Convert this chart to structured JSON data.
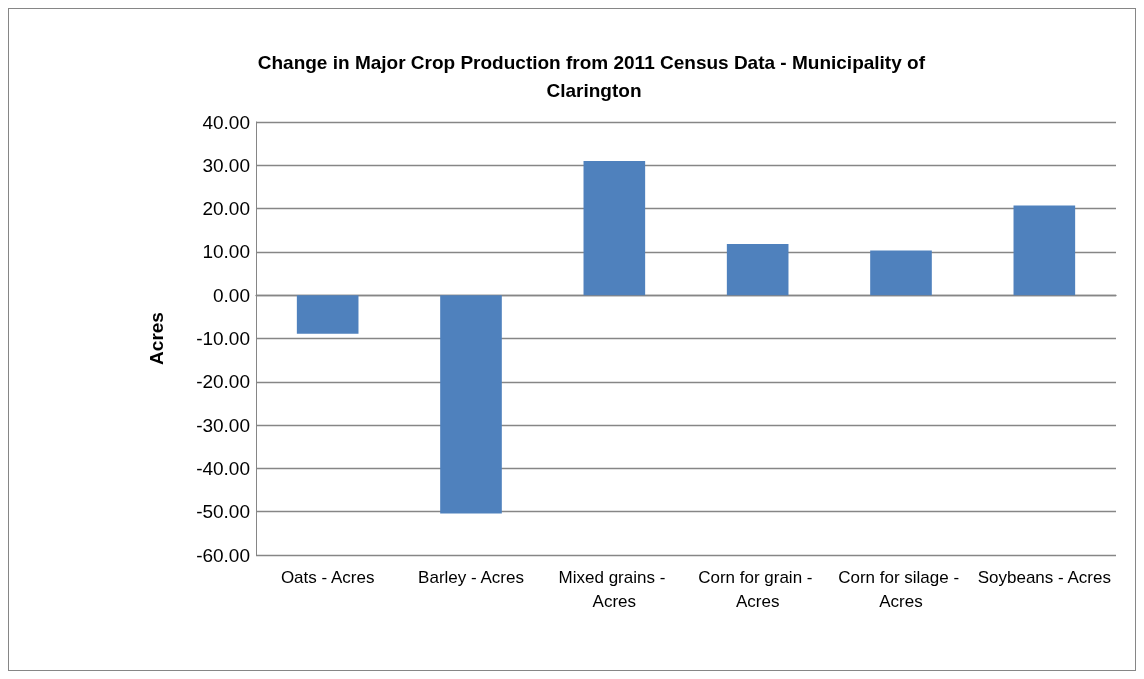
{
  "chart_data": {
    "type": "bar",
    "title": "Change in Major Crop Production from 2011 Census Data - Municipality of Clarington",
    "ylabel": "Acres",
    "categories": [
      "Oats - Acres",
      "Barley - Acres",
      "Mixed grains - Acres",
      "Corn for grain - Acres",
      "Corn for silage - Acres",
      "Soybeans - Acres"
    ],
    "values": [
      -8.9,
      -50.4,
      31.0,
      11.8,
      10.3,
      20.7
    ],
    "color": "#4f81bd",
    "ylim": [
      -60,
      40
    ],
    "yticks": [
      {
        "value": -60,
        "label": "-60.00"
      },
      {
        "value": -50,
        "label": "-50.00"
      },
      {
        "value": -40,
        "label": "-40.00"
      },
      {
        "value": -30,
        "label": "-30.00"
      },
      {
        "value": -20,
        "label": "-20.00"
      },
      {
        "value": -10,
        "label": "-10.00"
      },
      {
        "value": 0,
        "label": "0.00"
      },
      {
        "value": 10,
        "label": "10.00"
      },
      {
        "value": 20,
        "label": "20.00"
      },
      {
        "value": 30,
        "label": "30.00"
      },
      {
        "value": 40,
        "label": "40.00"
      }
    ],
    "grid": "y",
    "legend": false
  }
}
